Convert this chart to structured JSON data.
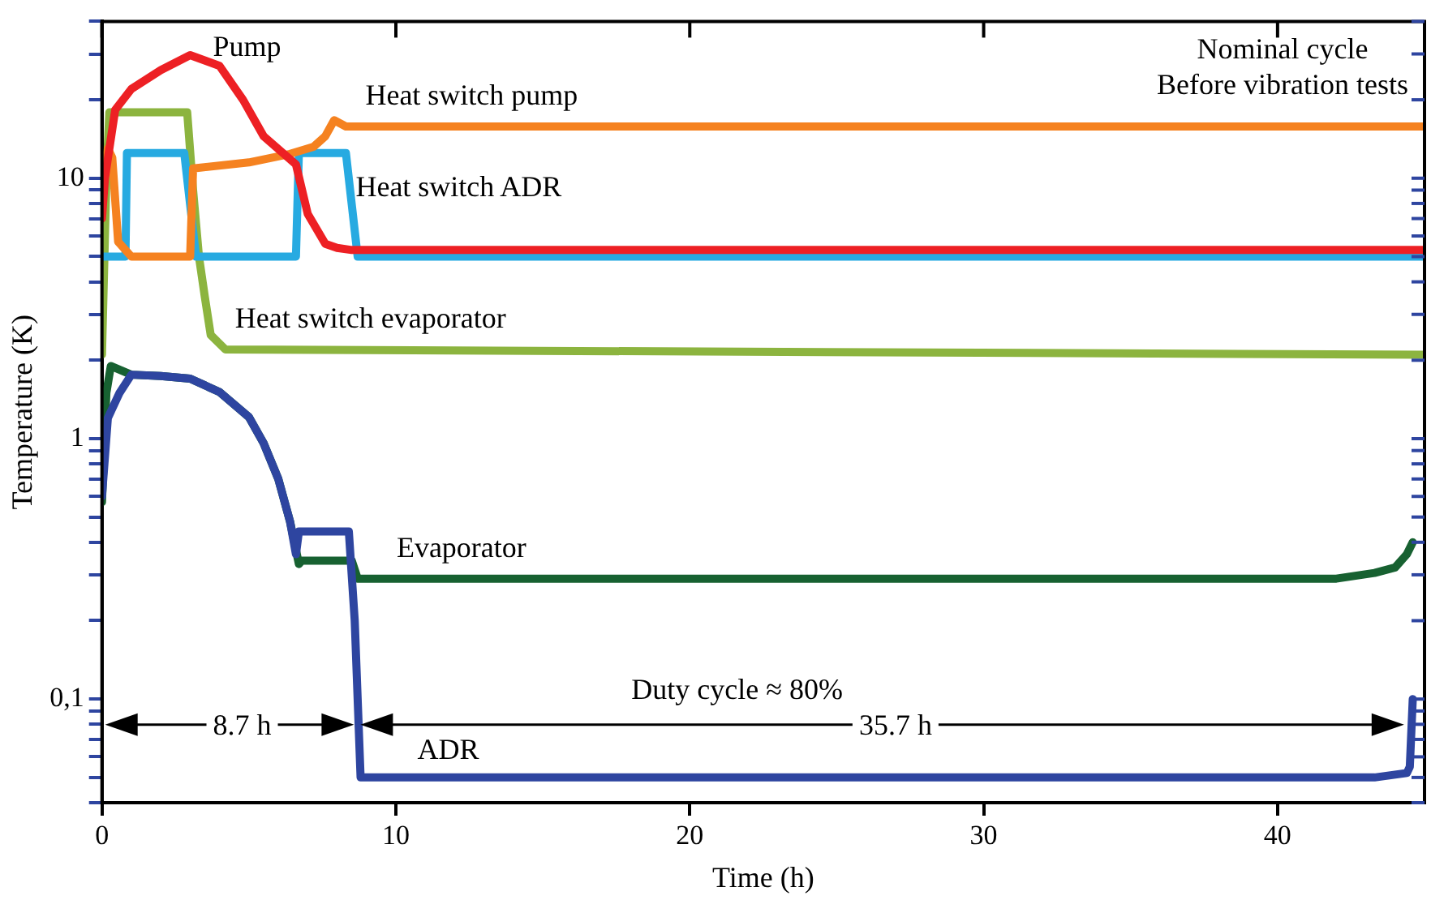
{
  "chart_data": {
    "type": "line",
    "xlabel": "Time (h)",
    "ylabel": "Temperature (K)",
    "log": "y",
    "grid": false,
    "legend": false,
    "marker": "none",
    "line_style": "solid",
    "xlim": [
      0,
      45
    ],
    "xticks": [
      0,
      10,
      20,
      30,
      40
    ],
    "ylim": [
      0.04,
      40
    ],
    "yticks": [
      {
        "value": 0.04,
        "label": null
      },
      {
        "value": 0.05,
        "label": null
      },
      {
        "value": 0.06,
        "label": null
      },
      {
        "value": 0.07,
        "label": null
      },
      {
        "value": 0.08,
        "label": null
      },
      {
        "value": 0.09,
        "label": null
      },
      {
        "value": 0.1,
        "label": "0,1"
      },
      {
        "value": 0.2,
        "label": null
      },
      {
        "value": 0.3,
        "label": null
      },
      {
        "value": 0.4,
        "label": null
      },
      {
        "value": 0.5,
        "label": null
      },
      {
        "value": 0.6,
        "label": null
      },
      {
        "value": 0.7,
        "label": null
      },
      {
        "value": 0.8,
        "label": null
      },
      {
        "value": 0.9,
        "label": null
      },
      1,
      {
        "value": 2,
        "label": null
      },
      {
        "value": 3,
        "label": null
      },
      {
        "value": 4,
        "label": null
      },
      {
        "value": 5,
        "label": null
      },
      {
        "value": 6,
        "label": null
      },
      {
        "value": 7,
        "label": null
      },
      {
        "value": 8,
        "label": null
      },
      {
        "value": 9,
        "label": null
      },
      10,
      {
        "value": 20,
        "label": null
      },
      {
        "value": 30,
        "label": null
      },
      {
        "value": 40,
        "label": null
      }
    ],
    "series": [
      {
        "name": "Pump",
        "color": "#ed2024",
        "x": [
          0,
          0.1,
          0.45,
          1,
          2,
          3,
          4,
          4.8,
          5.5,
          6.6,
          7,
          7.6,
          8,
          8.5,
          45
        ],
        "values": [
          7,
          10,
          18.3,
          22,
          26,
          29.7,
          27,
          20,
          14.5,
          11.3,
          7.3,
          5.6,
          5.4,
          5.3,
          5.3
        ]
      },
      {
        "name": "Heat switch pump",
        "color": "#f58220",
        "x": [
          0,
          0.2,
          0.35,
          0.55,
          1,
          3,
          3.1,
          5,
          6.4,
          7.2,
          7.6,
          7.9,
          8.3,
          45
        ],
        "values": [
          10,
          13,
          12,
          5.7,
          5,
          5,
          10.9,
          11.5,
          12.4,
          13.2,
          14.5,
          16.7,
          15.8,
          15.8
        ]
      },
      {
        "name": "Heat switch ADR",
        "color": "#27aae1",
        "x": [
          0,
          0.8,
          0.85,
          2.8,
          3.2,
          6.6,
          6.7,
          8.3,
          8.7,
          45
        ],
        "values": [
          5,
          5,
          12.5,
          12.5,
          5,
          5,
          12.5,
          12.5,
          5,
          5
        ]
      },
      {
        "name": "Heat switch evaporator",
        "color": "#8cb43f",
        "x": [
          0,
          0.15,
          0.25,
          2.9,
          3.1,
          3.3,
          3.5,
          3.7,
          4.2,
          45
        ],
        "values": [
          2.1,
          10,
          17.9,
          17.9,
          9,
          5,
          3.5,
          2.5,
          2.2,
          2.1
        ]
      },
      {
        "name": "ADR",
        "color": "#2e45a0",
        "x": [
          0,
          0.2,
          0.6,
          1,
          2,
          3,
          4,
          5,
          5.5,
          6,
          6.4,
          6.6,
          6.7,
          8.4,
          8.6,
          8.8,
          43.3,
          44.4,
          44.5,
          44.6
        ],
        "values": [
          0.6,
          1.2,
          1.5,
          1.76,
          1.74,
          1.7,
          1.51,
          1.21,
          0.96,
          0.7,
          0.48,
          0.36,
          0.44,
          0.44,
          0.2,
          0.05,
          0.05,
          0.052,
          0.055,
          0.1
        ]
      },
      {
        "name": "Evaporator",
        "color": "#176131",
        "x": [
          0,
          0.15,
          0.3,
          1,
          2,
          3,
          4,
          5,
          5.5,
          6,
          6.4,
          6.7,
          6.8,
          8.5,
          8.7,
          42,
          43.3,
          44,
          44.4,
          44.6
        ],
        "values": [
          0.57,
          1.5,
          1.9,
          1.76,
          1.74,
          1.7,
          1.51,
          1.21,
          0.96,
          0.7,
          0.48,
          0.33,
          0.34,
          0.34,
          0.29,
          0.29,
          0.305,
          0.32,
          0.36,
          0.4
        ]
      }
    ],
    "annotations": [
      "Nominal cycle\nBefore vibration tests",
      "8.7 h",
      "Duty cycle ≈ 80%",
      "35.7 h"
    ]
  }
}
